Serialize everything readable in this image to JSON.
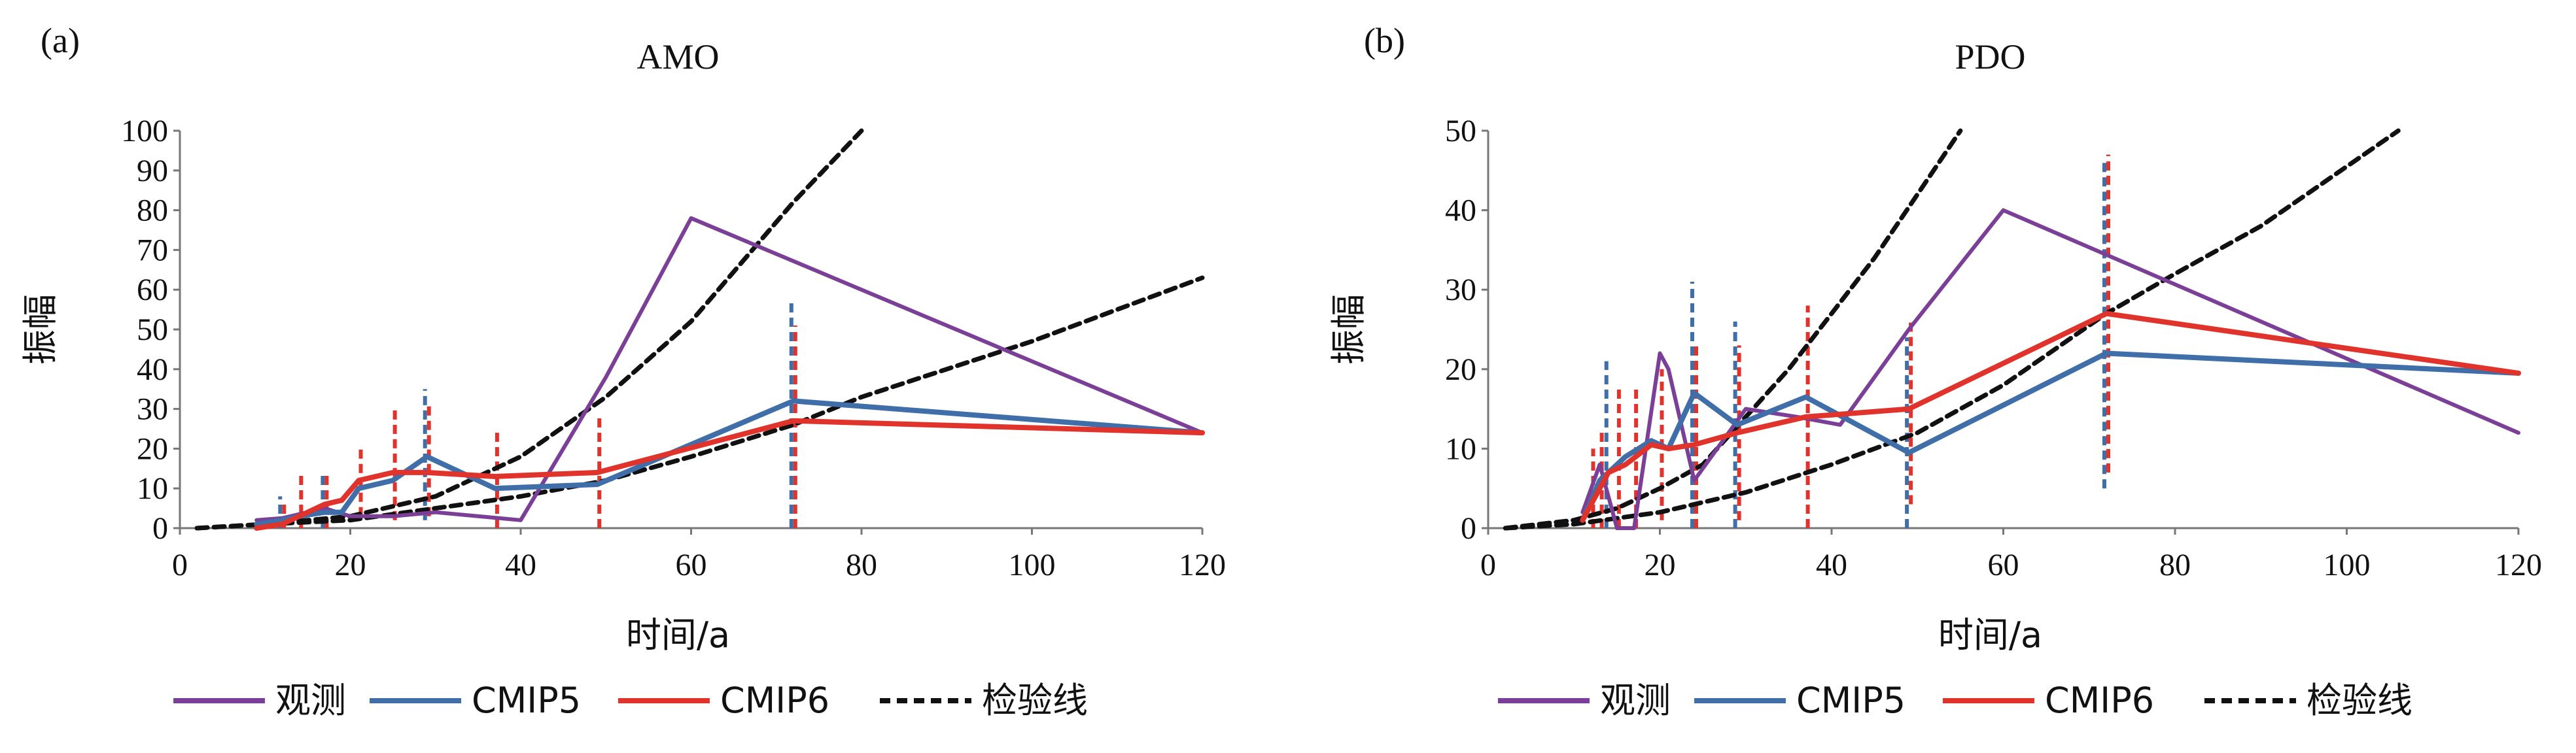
{
  "figure": {
    "legend": [
      {
        "name": "观测",
        "color": "#7b3f98",
        "dash": "solid"
      },
      {
        "name": "CMIP5",
        "color": "#3f6ea8",
        "dash": "solid"
      },
      {
        "name": "CMIP6",
        "color": "#e0332c",
        "dash": "solid"
      },
      {
        "name": "检验线",
        "color": "#111111",
        "dash": "dashed"
      }
    ]
  },
  "chart_data": [
    {
      "type": "line",
      "panel_label": "(a)",
      "title": "AMO",
      "xlabel": "时间/a",
      "ylabel": "振幅",
      "xlim": [
        0,
        120
      ],
      "ylim": [
        0,
        100
      ],
      "xticks": [
        0,
        20,
        40,
        60,
        80,
        100,
        120
      ],
      "yticks": [
        0,
        10,
        20,
        30,
        40,
        50,
        60,
        70,
        80,
        90,
        100
      ],
      "series": [
        {
          "name": "观测",
          "color": "#7b3f98",
          "x": [
            9,
            12,
            17,
            20,
            25,
            30,
            40,
            50,
            60,
            120
          ],
          "y": [
            2,
            2.5,
            5,
            3,
            3,
            4,
            2,
            38,
            78,
            24
          ]
        },
        {
          "name": "CMIP5",
          "color": "#3f6ea8",
          "x": [
            9,
            12,
            14,
            17,
            19,
            21,
            25,
            29,
            37,
            49,
            72,
            120
          ],
          "y": [
            1,
            2,
            3,
            4,
            4,
            10,
            12,
            18,
            10,
            11,
            32,
            24
          ]
        },
        {
          "name": "CMIP6",
          "color": "#e0332c",
          "x": [
            9,
            12,
            14,
            17,
            19,
            21,
            25,
            29,
            37,
            49,
            72,
            120
          ],
          "y": [
            0,
            1,
            3,
            6,
            7,
            12,
            14,
            14,
            13,
            14,
            27,
            24
          ]
        },
        {
          "name": "检验线",
          "color": "#111111",
          "dashed": true,
          "x": [
            2,
            10,
            20,
            30,
            40,
            50,
            60,
            72,
            80
          ],
          "y": [
            0,
            1,
            3,
            8,
            18,
            33,
            52,
            82,
            100
          ]
        },
        {
          "name": "检验线",
          "color": "#111111",
          "dashed": true,
          "x": [
            2,
            10,
            20,
            30,
            40,
            50,
            60,
            72,
            80,
            100,
            120
          ],
          "y": [
            0,
            1,
            2,
            5,
            8,
            12,
            18,
            26,
            33,
            47,
            63
          ]
        }
      ],
      "error_bars": [
        {
          "x": 12,
          "series": "CMIP5",
          "low": 0,
          "high": 8
        },
        {
          "x": 12,
          "series": "CMIP6",
          "low": 0,
          "high": 6
        },
        {
          "x": 14,
          "series": "CMIP6",
          "low": 0,
          "high": 14
        },
        {
          "x": 17,
          "series": "CMIP5",
          "low": 0,
          "high": 14
        },
        {
          "x": 17,
          "series": "CMIP6",
          "low": 0,
          "high": 14
        },
        {
          "x": 21,
          "series": "CMIP6",
          "low": 3,
          "high": 21
        },
        {
          "x": 25,
          "series": "CMIP6",
          "low": 2,
          "high": 30
        },
        {
          "x": 29,
          "series": "CMIP5",
          "low": 2,
          "high": 35
        },
        {
          "x": 29,
          "series": "CMIP6",
          "low": 3,
          "high": 31
        },
        {
          "x": 37,
          "series": "CMIP6",
          "low": 0,
          "high": 25
        },
        {
          "x": 49,
          "series": "CMIP6",
          "low": 0,
          "high": 28
        },
        {
          "x": 72,
          "series": "CMIP5",
          "low": 0,
          "high": 57
        },
        {
          "x": 72,
          "series": "CMIP6",
          "low": 0,
          "high": 51
        }
      ]
    },
    {
      "type": "line",
      "panel_label": "(b)",
      "title": "PDO",
      "xlabel": "时间/a",
      "ylabel": "振幅",
      "xlim": [
        0,
        120
      ],
      "ylim": [
        0,
        50
      ],
      "xticks": [
        0,
        20,
        40,
        60,
        80,
        100,
        120
      ],
      "yticks": [
        0,
        10,
        20,
        30,
        40,
        50
      ],
      "series": [
        {
          "name": "观测",
          "color": "#7b3f98",
          "x": [
            11,
            13,
            14,
            15,
            17,
            20,
            21,
            24,
            30,
            36,
            41,
            49,
            60,
            120
          ],
          "y": [
            2,
            8,
            4,
            0,
            0,
            22,
            20,
            6,
            15,
            14,
            13,
            25,
            40,
            12
          ]
        },
        {
          "name": "CMIP5",
          "color": "#3f6ea8",
          "x": [
            11,
            13,
            14,
            16,
            19,
            21,
            24,
            29,
            37,
            49,
            72,
            120
          ],
          "y": [
            1,
            6,
            7,
            9,
            11,
            10,
            17,
            13,
            16.5,
            9.5,
            22,
            19.5
          ]
        },
        {
          "name": "CMIP6",
          "color": "#e0332c",
          "x": [
            11,
            13,
            14,
            16,
            19,
            21,
            24,
            29,
            37,
            49,
            72,
            120
          ],
          "y": [
            1,
            5,
            7,
            8,
            10.5,
            10,
            10.5,
            12,
            14,
            15,
            27,
            19.5
          ]
        },
        {
          "name": "检验线",
          "color": "#111111",
          "dashed": true,
          "x": [
            2,
            10,
            15,
            20,
            25,
            30,
            35,
            40,
            45,
            50,
            55
          ],
          "y": [
            0,
            1,
            2.5,
            5,
            8,
            14,
            20,
            27,
            34,
            42,
            50
          ]
        },
        {
          "name": "检验线",
          "color": "#111111",
          "dashed": true,
          "x": [
            2,
            10,
            20,
            30,
            40,
            50,
            60,
            72,
            80,
            90,
            106
          ],
          "y": [
            0,
            0.5,
            2,
            4.5,
            8,
            12,
            18,
            27,
            32,
            38,
            50
          ]
        }
      ],
      "error_bars": [
        {
          "x": 12,
          "series": "CMIP6",
          "low": 0,
          "high": 10
        },
        {
          "x": 13,
          "series": "CMIP6",
          "low": 0,
          "high": 12
        },
        {
          "x": 14,
          "series": "CMIP5",
          "low": 0,
          "high": 21
        },
        {
          "x": 15,
          "series": "CMIP6",
          "low": 0,
          "high": 18
        },
        {
          "x": 17,
          "series": "CMIP6",
          "low": 0,
          "high": 18
        },
        {
          "x": 20,
          "series": "CMIP6",
          "low": 1,
          "high": 20
        },
        {
          "x": 24,
          "series": "CMIP5",
          "low": 0,
          "high": 31
        },
        {
          "x": 24,
          "series": "CMIP6",
          "low": 0,
          "high": 23
        },
        {
          "x": 29,
          "series": "CMIP5",
          "low": 0,
          "high": 26
        },
        {
          "x": 29,
          "series": "CMIP6",
          "low": 1,
          "high": 23
        },
        {
          "x": 37,
          "series": "CMIP6",
          "low": 0,
          "high": 28
        },
        {
          "x": 49,
          "series": "CMIP5",
          "low": 0,
          "high": 24
        },
        {
          "x": 49,
          "series": "CMIP6",
          "low": 3,
          "high": 26
        },
        {
          "x": 72,
          "series": "CMIP5",
          "low": 5,
          "high": 46
        },
        {
          "x": 72,
          "series": "CMIP6",
          "low": 7,
          "high": 47
        }
      ]
    }
  ]
}
